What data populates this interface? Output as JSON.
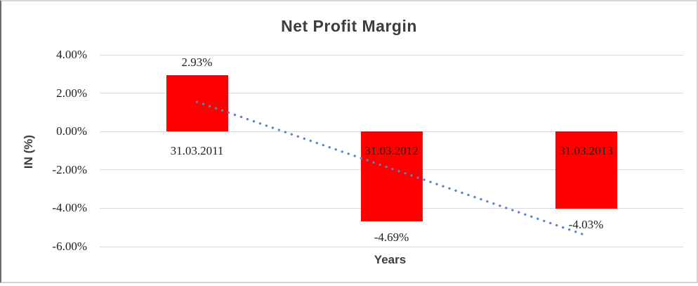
{
  "chart_data": {
    "type": "bar",
    "title": "Net Profit Margin",
    "xlabel": "Years",
    "ylabel": "IN (%)",
    "categories": [
      "31.03.2011",
      "31.03.2012",
      "31.03.2013"
    ],
    "values": [
      2.93,
      -4.69,
      -4.03
    ],
    "data_labels": [
      "2.93%",
      "-4.69%",
      "-4.03%"
    ],
    "ytick_values": [
      4,
      2,
      0,
      -2,
      -4,
      -6
    ],
    "ytick_labels": [
      "4.00%",
      "2.00%",
      "0.00%",
      "-2.00%",
      "-4.00%",
      "-6.00%"
    ],
    "ylim": [
      -6,
      4
    ],
    "grid": true,
    "legend": "none",
    "bar_color": "#ff0000",
    "gridline_color": "#d9d9d9",
    "trendline": {
      "type": "linear",
      "style": "dotted",
      "color": "#5585c8",
      "start_value": 1.55,
      "end_value": -5.41
    }
  }
}
